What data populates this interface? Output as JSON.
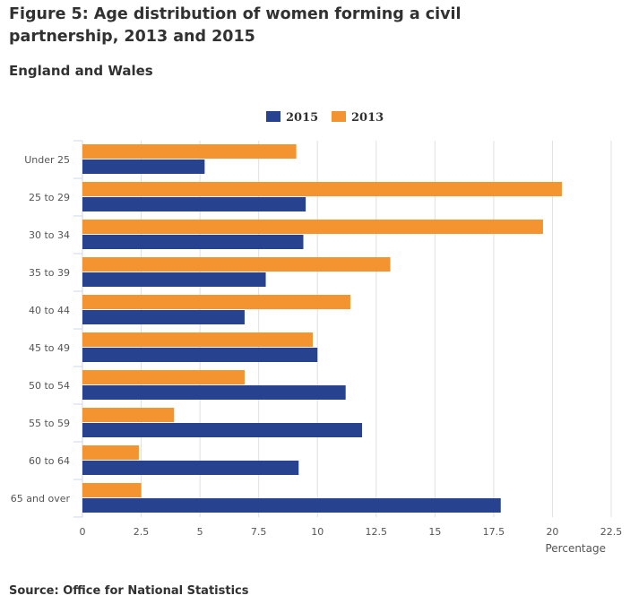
{
  "title": "Figure 5: Age distribution of women forming a civil partnership, 2013 and 2015",
  "subtitle": "England and Wales",
  "source": "Source: Office for National Statistics",
  "chart_data": {
    "type": "bar",
    "orientation": "horizontal",
    "categories": [
      "Under 25",
      "25 to 29",
      "30 to 34",
      "35 to 39",
      "40 to 44",
      "45 to 49",
      "50 to 54",
      "55 to 59",
      "60 to 64",
      "65 and over"
    ],
    "series": [
      {
        "name": "2013",
        "color": "#F39431",
        "values": [
          9.1,
          20.4,
          19.6,
          13.1,
          11.4,
          9.8,
          6.9,
          3.9,
          2.4,
          2.5
        ]
      },
      {
        "name": "2015",
        "color": "#27428F",
        "values": [
          5.2,
          9.5,
          9.4,
          7.8,
          6.9,
          10.0,
          11.2,
          11.9,
          9.2,
          17.8
        ]
      }
    ],
    "legend_order": [
      "2015",
      "2013"
    ],
    "legend_position": "top",
    "xlabel": "Percentage",
    "xlim": [
      0,
      22.5
    ],
    "xticks": [
      "0",
      "2.5",
      "5",
      "7.5",
      "10",
      "12.5",
      "15",
      "17.5",
      "20",
      "22.5"
    ],
    "grid": true
  }
}
